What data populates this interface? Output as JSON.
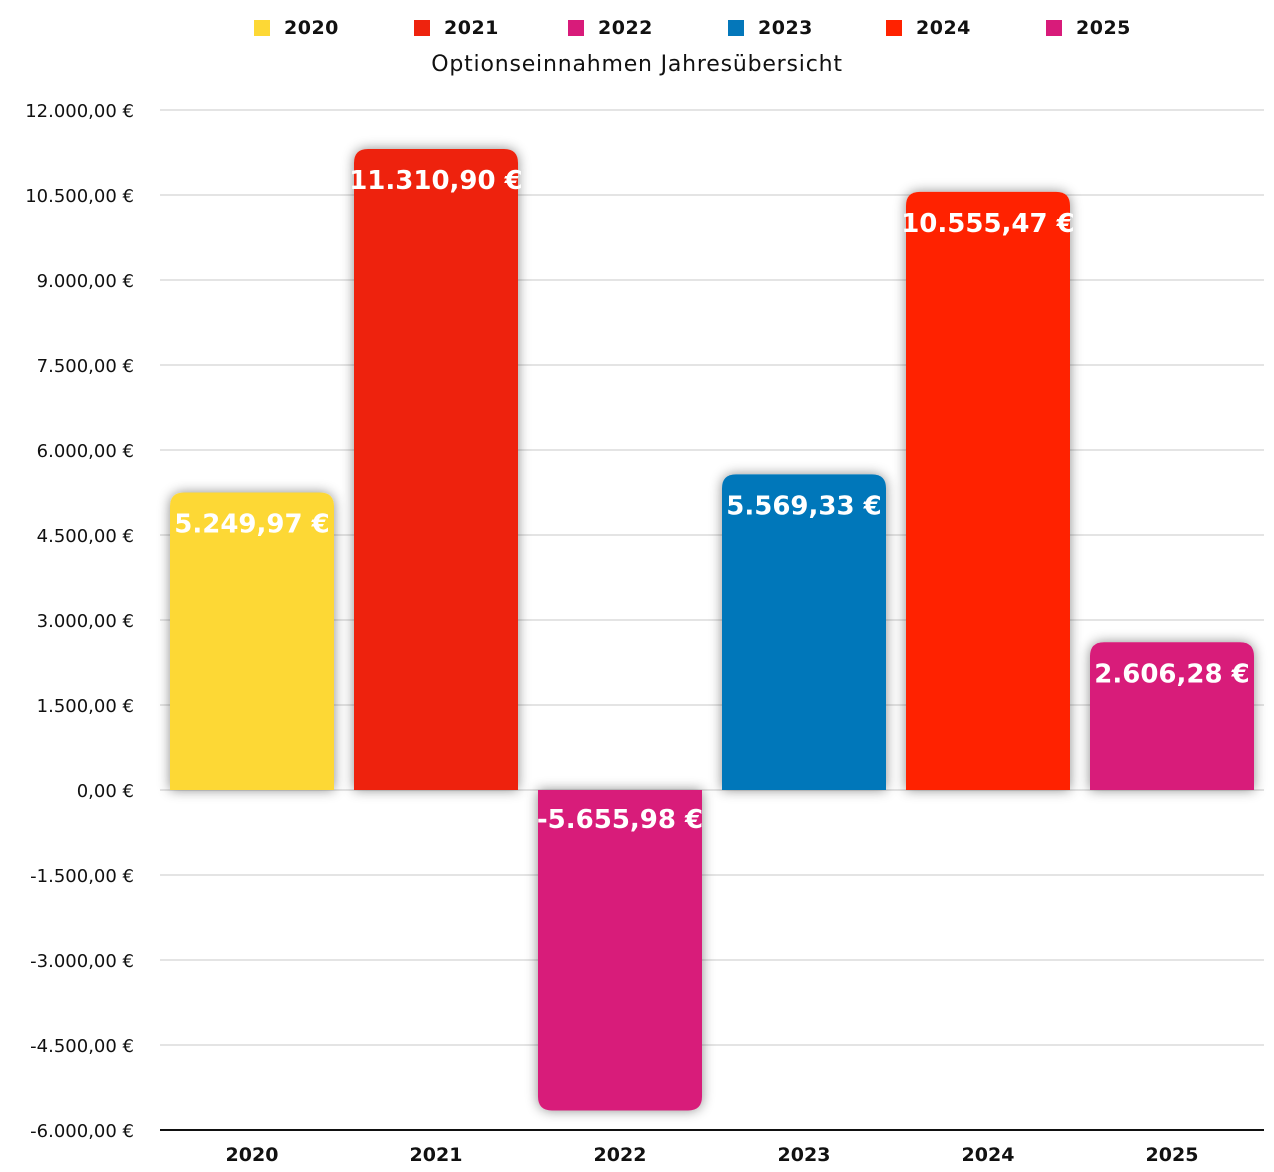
{
  "chart_data": {
    "type": "bar",
    "title": "Optionseinnahmen Jahresübersicht",
    "categories": [
      "2020",
      "2021",
      "2022",
      "2023",
      "2024",
      "2025"
    ],
    "values": [
      5249.97,
      11310.9,
      -5655.98,
      5569.33,
      10555.47,
      2606.28
    ],
    "value_labels": [
      "5.249,97 €",
      "11.310,90 €",
      "-5.655,98 €",
      "5.569,33 €",
      "10.555,47 €",
      "2.606,28 €"
    ],
    "colors": [
      "#FDD835",
      "#EE230E",
      "#D81B7A",
      "#0477BA",
      "#FF2200",
      "#D81B7A"
    ],
    "legend": [
      {
        "label": "2020",
        "color": "#FDD835"
      },
      {
        "label": "2021",
        "color": "#EE230E"
      },
      {
        "label": "2022",
        "color": "#D81B7A"
      },
      {
        "label": "2023",
        "color": "#0477BA"
      },
      {
        "label": "2024",
        "color": "#FF2200"
      },
      {
        "label": "2025",
        "color": "#D81B7A"
      }
    ],
    "legend_position": "top",
    "ylim": [
      -6000,
      12000
    ],
    "yticks": [
      12000,
      10500,
      9000,
      7500,
      6000,
      4500,
      3000,
      1500,
      0,
      -1500,
      -3000,
      -4500,
      -6000
    ],
    "ytick_labels": [
      "12.000,00 €",
      "10.500,00 €",
      "9.000,00 €",
      "7.500,00 €",
      "6.000,00 €",
      "4.500,00 €",
      "3.000,00 €",
      "1.500,00 €",
      "0,00 €",
      "-1.500,00 €",
      "-3.000,00 €",
      "-4.500,00 €",
      "-6.000,00 €"
    ],
    "xlabel": "",
    "ylabel": "",
    "grid": true
  }
}
